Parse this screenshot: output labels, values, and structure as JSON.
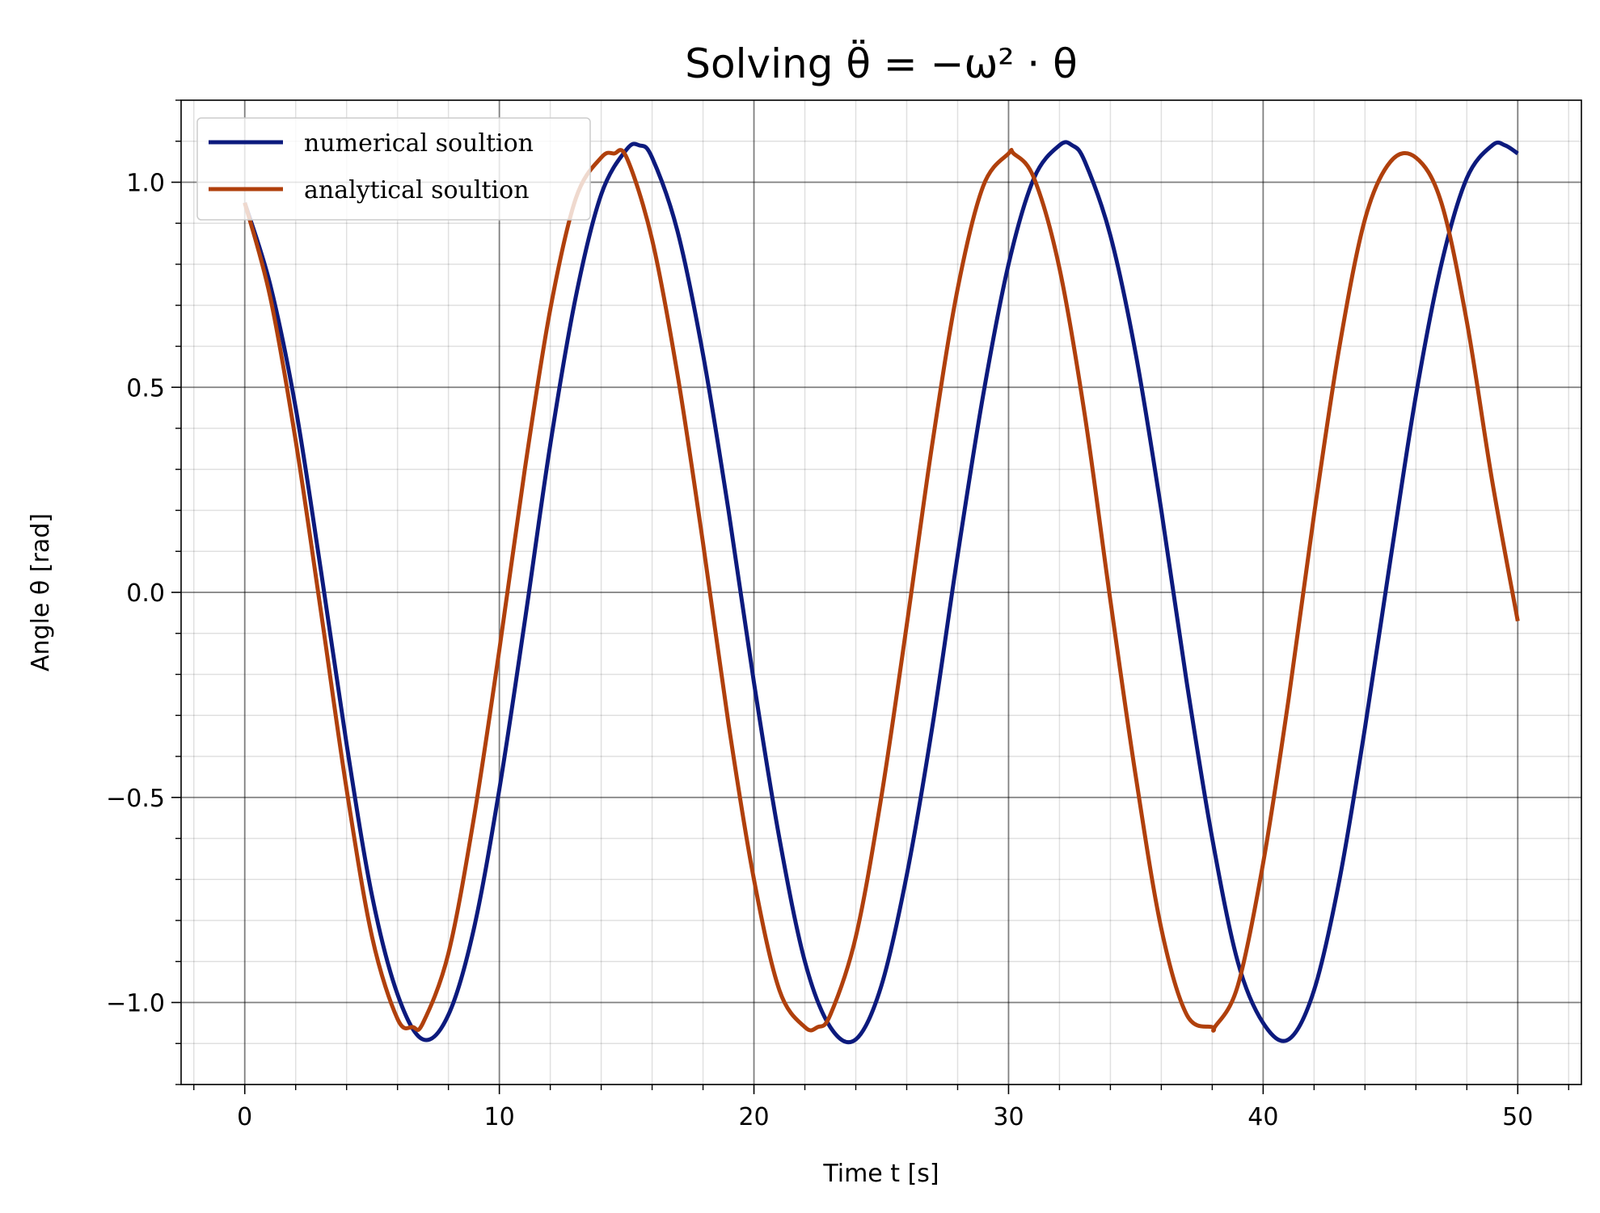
{
  "chart_data": {
    "type": "line",
    "title": "Solving θ̈ = −ω² · θ",
    "xlabel": "Time t [s]",
    "ylabel": "Angle θ [rad]",
    "xlim": [
      -2.5,
      52.5
    ],
    "ylim": [
      -1.2,
      1.2
    ],
    "x_ticks": [
      "0",
      "10",
      "20",
      "30",
      "40",
      "50"
    ],
    "y_ticks": [
      "−1.0",
      "−0.5",
      "0.0",
      "0.5",
      "1.0"
    ],
    "x_tick_values": [
      0,
      10,
      20,
      30,
      40,
      50
    ],
    "y_tick_values": [
      -1.0,
      -0.5,
      0.0,
      0.5,
      1.0
    ],
    "grid": "major and minor",
    "legend_position": "upper left",
    "series": [
      {
        "name": "numerical soultion",
        "color": "#0c1a7d",
        "x": [
          0,
          1,
          2,
          3,
          4,
          5,
          6,
          7,
          8,
          9,
          10,
          11,
          12,
          13,
          14,
          15,
          15.5,
          16,
          17,
          18,
          19,
          20,
          21,
          22,
          23,
          24,
          25,
          26,
          27,
          28,
          29,
          30,
          31,
          32,
          32.5,
          33,
          34,
          35,
          36,
          37,
          38,
          39,
          40,
          41,
          42,
          43,
          44,
          45,
          46,
          47,
          48,
          49,
          49.5,
          50
        ],
        "y": [
          0.95,
          0.75,
          0.45,
          0.05,
          -0.37,
          -0.74,
          -0.98,
          -1.09,
          -1.03,
          -0.82,
          -0.48,
          -0.07,
          0.36,
          0.72,
          0.97,
          1.08,
          1.09,
          1.06,
          0.88,
          0.58,
          0.2,
          -0.22,
          -0.6,
          -0.9,
          -1.06,
          -1.09,
          -0.96,
          -0.69,
          -0.33,
          0.09,
          0.48,
          0.8,
          1.01,
          1.09,
          1.09,
          1.05,
          0.87,
          0.58,
          0.2,
          -0.22,
          -0.6,
          -0.9,
          -1.05,
          -1.09,
          -0.97,
          -0.7,
          -0.33,
          0.08,
          0.48,
          0.8,
          1.01,
          1.09,
          1.09,
          1.07
        ]
      },
      {
        "name": "analytical soultion",
        "color": "#b0400c",
        "x": [
          0,
          1,
          2,
          3,
          4,
          5,
          6,
          6.6,
          7,
          8,
          9,
          10,
          11,
          12,
          13,
          14,
          14.5,
          15,
          16,
          17,
          18,
          19,
          20,
          21,
          22,
          22.5,
          23,
          24,
          25,
          26,
          27,
          28,
          29,
          30,
          30.2,
          31,
          32,
          33,
          34,
          35,
          36,
          37,
          38,
          38.1,
          39,
          40,
          41,
          42,
          43,
          44,
          45,
          46,
          47,
          48,
          49,
          50
        ],
        "y": [
          0.95,
          0.72,
          0.37,
          -0.05,
          -0.48,
          -0.84,
          -1.04,
          -1.06,
          -1.05,
          -0.88,
          -0.55,
          -0.14,
          0.3,
          0.69,
          0.96,
          1.06,
          1.07,
          1.06,
          0.86,
          0.53,
          0.12,
          -0.32,
          -0.7,
          -0.97,
          -1.06,
          -1.06,
          -1.03,
          -0.84,
          -0.5,
          -0.08,
          0.36,
          0.74,
          0.99,
          1.07,
          1.07,
          1.01,
          0.79,
          0.43,
          -0.02,
          -0.45,
          -0.82,
          -1.03,
          -1.06,
          -1.06,
          -0.96,
          -0.66,
          -0.26,
          0.19,
          0.6,
          0.91,
          1.05,
          1.06,
          0.95,
          0.66,
          0.27,
          -0.07
        ]
      }
    ]
  }
}
